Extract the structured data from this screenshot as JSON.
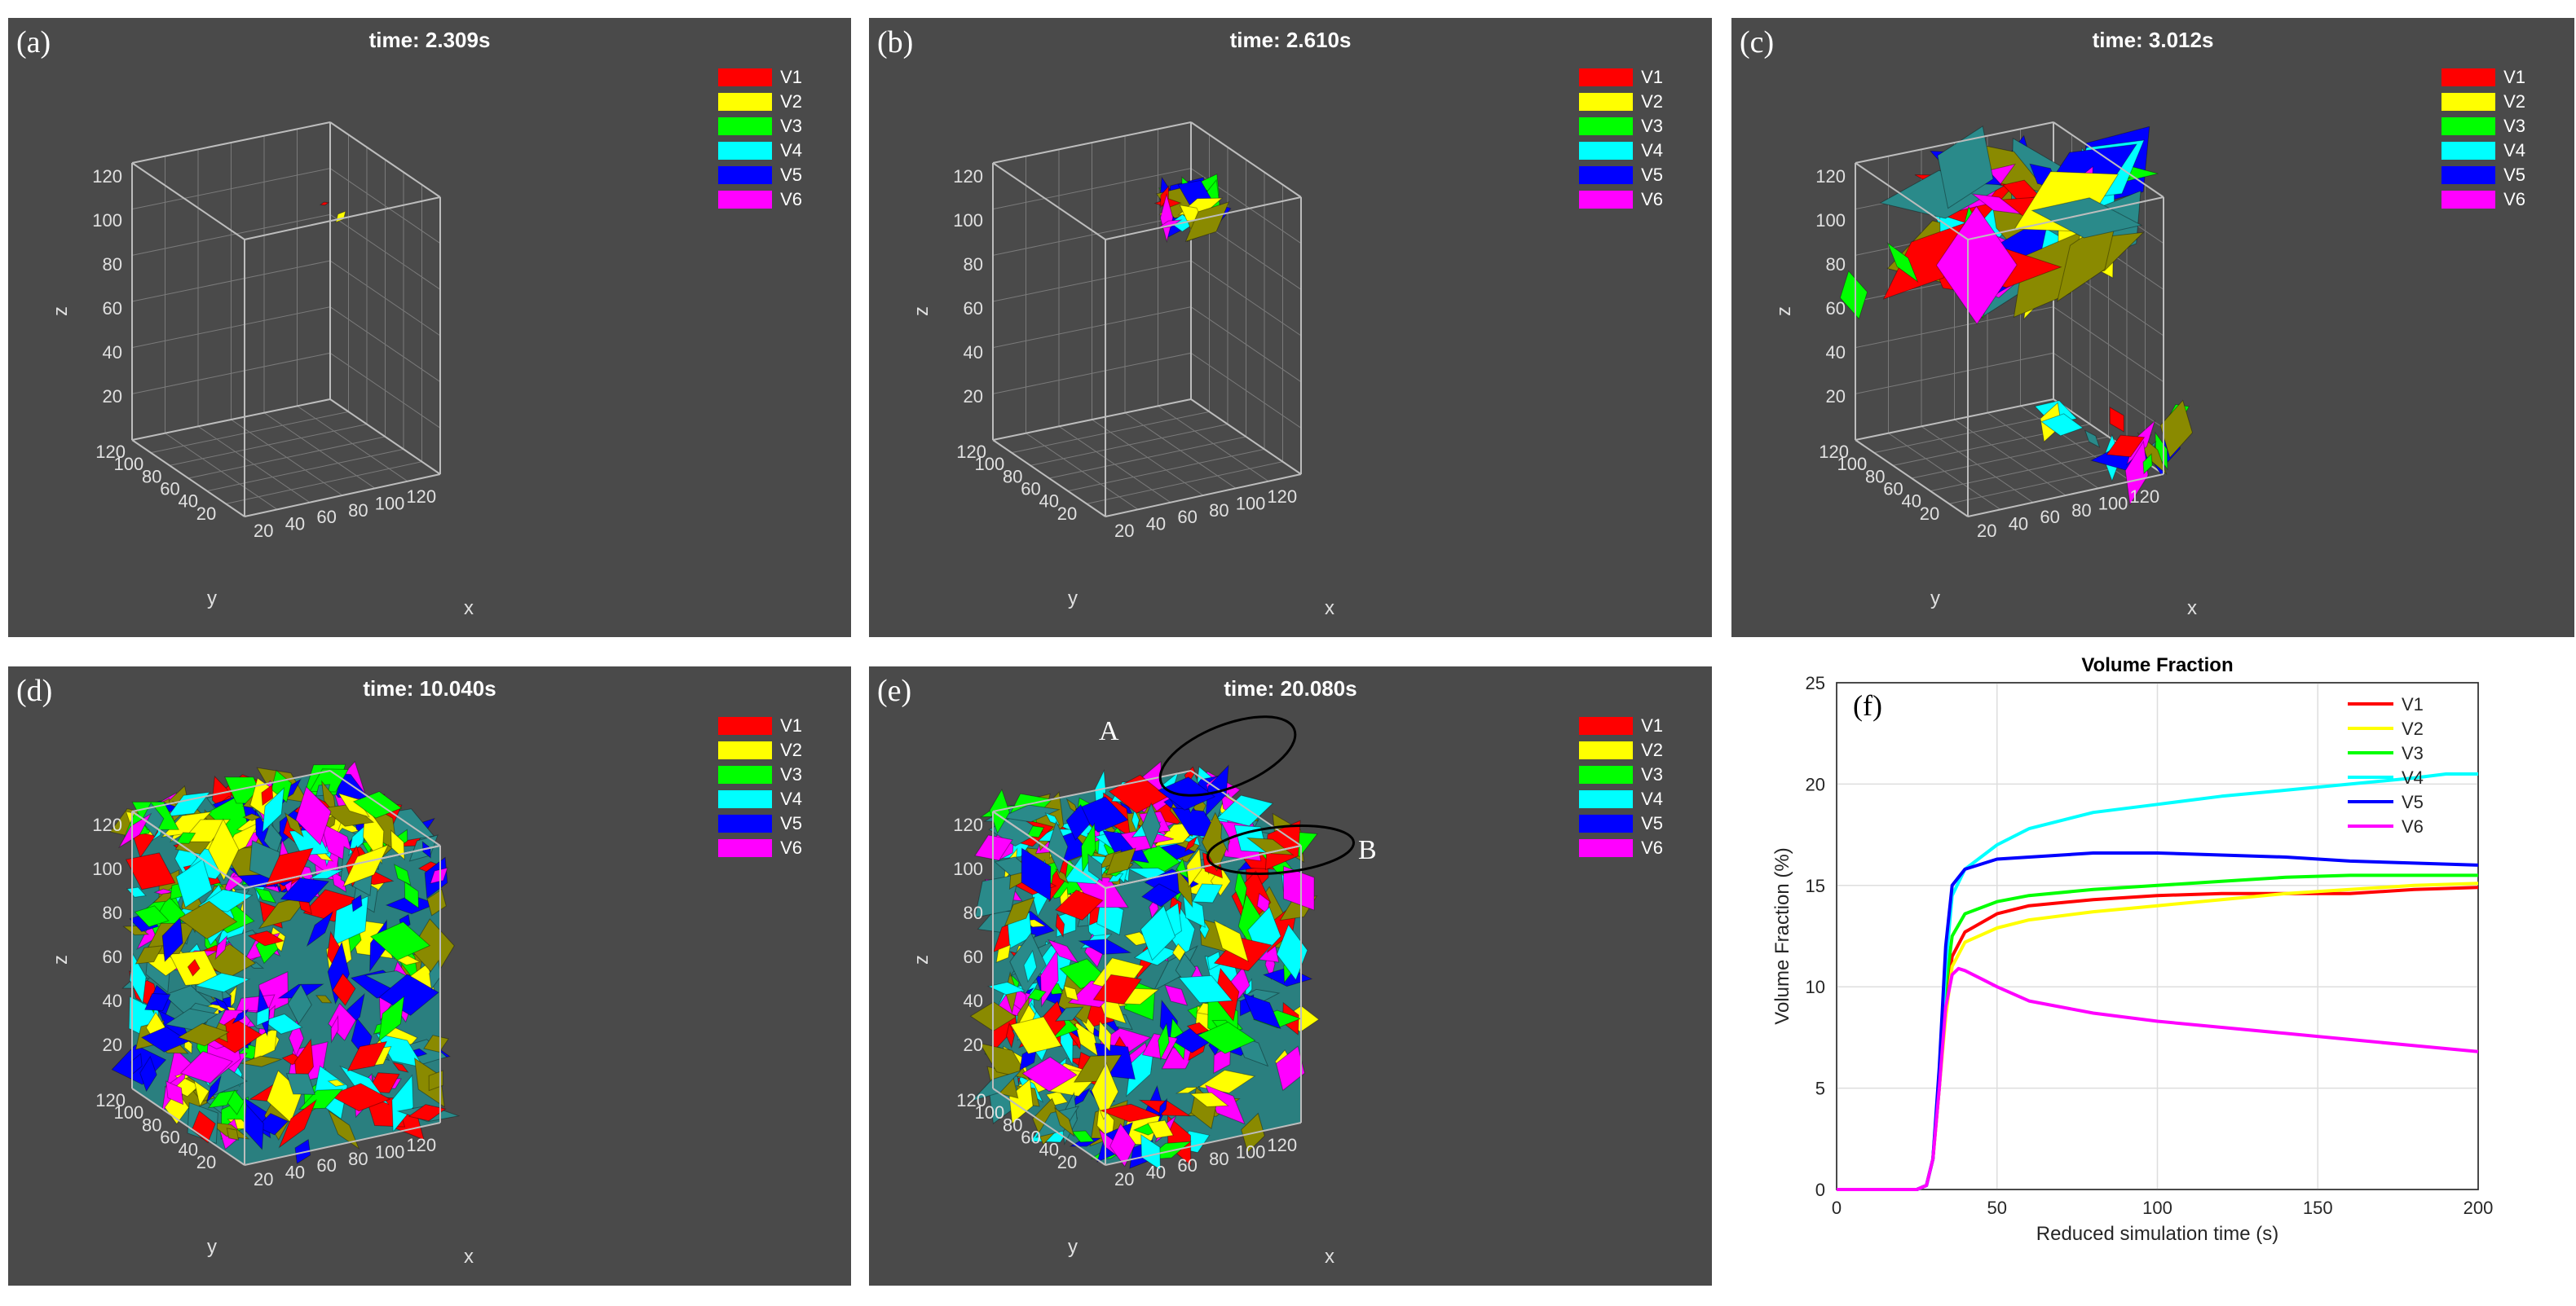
{
  "panels": [
    {
      "label": "(a)",
      "time": "time: 2.309s",
      "state": "sparse"
    },
    {
      "label": "(b)",
      "time": "time: 2.610s",
      "state": "nucleus"
    },
    {
      "label": "(c)",
      "time": "time: 3.012s",
      "state": "growing"
    },
    {
      "label": "(d)",
      "time": "time: 10.040s",
      "state": "full"
    },
    {
      "label": "(e)",
      "time": "time: 20.080s",
      "state": "full",
      "annotations": [
        "A",
        "B"
      ]
    }
  ],
  "legend": [
    {
      "name": "V1",
      "color": "#ff0000"
    },
    {
      "name": "V2",
      "color": "#ffff00"
    },
    {
      "name": "V3",
      "color": "#00ff00"
    },
    {
      "name": "V4",
      "color": "#00ffff"
    },
    {
      "name": "V5",
      "color": "#0000ff"
    },
    {
      "name": "V6",
      "color": "#ff00ff"
    }
  ],
  "axes3d": {
    "z_label": "z",
    "y_label": "y",
    "x_label": "x",
    "z_ticks": [
      "20",
      "40",
      "60",
      "80",
      "100",
      "120"
    ],
    "y_ticks": [
      "120",
      "100",
      "80",
      "60",
      "40",
      "20"
    ],
    "x_ticks": [
      "20",
      "40",
      "60",
      "80",
      "100",
      "120"
    ]
  },
  "chart_data": {
    "type": "line",
    "panel_label": "(f)",
    "title": "Volume Fraction",
    "xlabel": "Reduced simulation time (s)",
    "ylabel": "Volume Fraction (%)",
    "xlim": [
      0,
      200
    ],
    "ylim": [
      0,
      25
    ],
    "xticks": [
      0,
      50,
      100,
      150,
      200
    ],
    "yticks": [
      0,
      5,
      10,
      15,
      20,
      25
    ],
    "grid": true,
    "legend_position": "top-right",
    "series": [
      {
        "name": "V1",
        "color": "#ff0000",
        "x": [
          0,
          25,
          28,
          30,
          32,
          34,
          36,
          40,
          50,
          60,
          80,
          100,
          120,
          140,
          160,
          180,
          200
        ],
        "y": [
          0,
          0,
          0.2,
          1.5,
          5,
          9,
          11.5,
          12.7,
          13.6,
          14,
          14.3,
          14.5,
          14.6,
          14.6,
          14.6,
          14.8,
          14.9
        ]
      },
      {
        "name": "V2",
        "color": "#ffff00",
        "x": [
          0,
          25,
          28,
          30,
          32,
          34,
          36,
          40,
          50,
          60,
          80,
          100,
          120,
          140,
          160,
          180,
          200
        ],
        "y": [
          0,
          0,
          0.2,
          1.5,
          5,
          8.5,
          11,
          12.2,
          12.9,
          13.3,
          13.7,
          14,
          14.3,
          14.6,
          14.8,
          15,
          15.1
        ]
      },
      {
        "name": "V3",
        "color": "#00ff00",
        "x": [
          0,
          25,
          28,
          30,
          32,
          34,
          36,
          40,
          50,
          60,
          80,
          100,
          120,
          140,
          160,
          180,
          200
        ],
        "y": [
          0,
          0,
          0.2,
          1.5,
          5.5,
          10,
          12.5,
          13.6,
          14.2,
          14.5,
          14.8,
          15,
          15.2,
          15.4,
          15.5,
          15.5,
          15.5
        ]
      },
      {
        "name": "V4",
        "color": "#00ffff",
        "x": [
          0,
          25,
          28,
          30,
          32,
          34,
          36,
          40,
          50,
          60,
          80,
          100,
          120,
          140,
          160,
          180,
          190,
          200
        ],
        "y": [
          0,
          0,
          0.2,
          1.5,
          5.5,
          11,
          14.5,
          15.8,
          17,
          17.8,
          18.6,
          19,
          19.4,
          19.7,
          20,
          20.3,
          20.5,
          20.5
        ]
      },
      {
        "name": "V5",
        "color": "#0000ff",
        "x": [
          0,
          25,
          28,
          30,
          32,
          34,
          36,
          40,
          50,
          60,
          80,
          100,
          120,
          140,
          160,
          180,
          200
        ],
        "y": [
          0,
          0,
          0.2,
          1.5,
          6,
          12,
          15,
          15.8,
          16.3,
          16.4,
          16.6,
          16.6,
          16.5,
          16.4,
          16.2,
          16.1,
          16
        ]
      },
      {
        "name": "V6",
        "color": "#ff00ff",
        "x": [
          0,
          25,
          28,
          30,
          32,
          34,
          36,
          38,
          40,
          45,
          50,
          60,
          80,
          100,
          120,
          140,
          160,
          180,
          200
        ],
        "y": [
          0,
          0,
          0.2,
          1.5,
          5,
          9,
          10.6,
          10.9,
          10.8,
          10.4,
          10,
          9.3,
          8.7,
          8.3,
          8,
          7.7,
          7.4,
          7.1,
          6.8
        ]
      }
    ]
  }
}
